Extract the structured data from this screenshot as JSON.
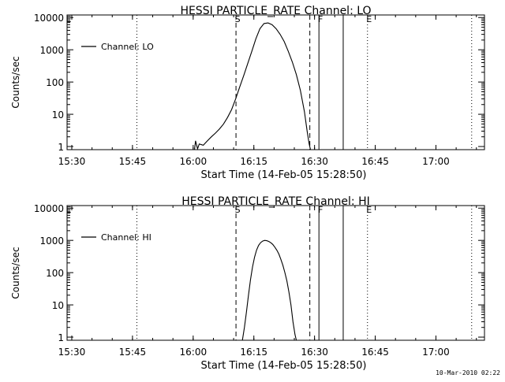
{
  "footer": {
    "timestamp": "10-Mar-2010 02:22"
  },
  "chart_data": [
    {
      "type": "line",
      "title": "HESSI PARTICLE_RATE Channel: LO",
      "xlabel": "Start Time (14-Feb-05 15:28:50)",
      "ylabel": "Counts/sec",
      "y_scale": "log",
      "ylim": [
        0.8,
        12000
      ],
      "xlim": [
        "15:28:50",
        "17:12:00"
      ],
      "x_ticks": [
        "15:30",
        "15:45",
        "16:00",
        "16:15",
        "16:30",
        "16:45",
        "17:00"
      ],
      "y_ticks": [
        "1",
        "10",
        "100",
        "1000",
        "10000"
      ],
      "legend": {
        "position": "top-left",
        "entries": [
          "Channel: LO"
        ]
      },
      "markers": [
        {
          "label": "E",
          "time": "15:28:50",
          "style": "dotted"
        },
        {
          "label": "",
          "time": "15:46:05",
          "style": "dotted"
        },
        {
          "label": "S",
          "time": "16:10:35",
          "style": "dashed"
        },
        {
          "label": "",
          "time": "16:28:50",
          "style": "dashed"
        },
        {
          "label": "F",
          "time": "16:31:05",
          "style": "solid"
        },
        {
          "label": "",
          "time": "16:37:05",
          "style": "solid"
        },
        {
          "label": "E",
          "time": "16:43:05",
          "style": "dotted"
        },
        {
          "label": "",
          "time": "17:08:50",
          "style": "dotted"
        }
      ],
      "series": [
        {
          "points": [
            [
              "16:00:20",
              0.8
            ],
            [
              "16:00:35",
              1.5
            ],
            [
              "16:01:05",
              0.85
            ],
            [
              "16:01:30",
              1.2
            ],
            [
              "16:02:30",
              1.1
            ],
            [
              "16:03:30",
              1.5
            ],
            [
              "16:04:30",
              2.0
            ],
            [
              "16:05:30",
              2.6
            ],
            [
              "16:06:30",
              3.5
            ],
            [
              "16:07:30",
              5.0
            ],
            [
              "16:08:30",
              8.0
            ],
            [
              "16:09:30",
              14
            ],
            [
              "16:10:30",
              30
            ],
            [
              "16:11:30",
              70
            ],
            [
              "16:12:30",
              160
            ],
            [
              "16:13:30",
              380
            ],
            [
              "16:14:30",
              900
            ],
            [
              "16:15:30",
              2200
            ],
            [
              "16:16:30",
              4500
            ],
            [
              "16:17:30",
              6500
            ],
            [
              "16:18:30",
              6800
            ],
            [
              "16:19:30",
              6000
            ],
            [
              "16:20:30",
              4500
            ],
            [
              "16:21:30",
              3000
            ],
            [
              "16:22:30",
              1800
            ],
            [
              "16:23:30",
              900
            ],
            [
              "16:24:30",
              420
            ],
            [
              "16:25:30",
              170
            ],
            [
              "16:26:30",
              55
            ],
            [
              "16:27:30",
              12
            ],
            [
              "16:28:10",
              3
            ],
            [
              "16:28:40",
              1.2
            ],
            [
              "16:29:00",
              0.8
            ]
          ]
        }
      ]
    },
    {
      "type": "line",
      "title": "HESSI PARTICLE_RATE Channel: HI",
      "xlabel": "Start Time (14-Feb-05 15:28:50)",
      "ylabel": "Counts/sec",
      "y_scale": "log",
      "ylim": [
        0.8,
        12000
      ],
      "xlim": [
        "15:28:50",
        "17:12:00"
      ],
      "x_ticks": [
        "15:30",
        "15:45",
        "16:00",
        "16:15",
        "16:30",
        "16:45",
        "17:00"
      ],
      "y_ticks": [
        "1",
        "10",
        "100",
        "1000",
        "10000"
      ],
      "legend": {
        "position": "top-left",
        "entries": [
          "Channel: HI"
        ]
      },
      "markers": [
        {
          "label": "E",
          "time": "15:28:50",
          "style": "dotted"
        },
        {
          "label": "",
          "time": "15:46:05",
          "style": "dotted"
        },
        {
          "label": "S",
          "time": "16:10:35",
          "style": "dashed"
        },
        {
          "label": "",
          "time": "16:28:50",
          "style": "dashed"
        },
        {
          "label": "F",
          "time": "16:31:05",
          "style": "solid"
        },
        {
          "label": "",
          "time": "16:37:05",
          "style": "solid"
        },
        {
          "label": "E",
          "time": "16:43:05",
          "style": "dotted"
        },
        {
          "label": "",
          "time": "17:08:50",
          "style": "dotted"
        }
      ],
      "series": [
        {
          "points": [
            [
              "16:12:10",
              0.8
            ],
            [
              "16:12:40",
              2
            ],
            [
              "16:13:10",
              6
            ],
            [
              "16:13:40",
              20
            ],
            [
              "16:14:10",
              60
            ],
            [
              "16:14:40",
              150
            ],
            [
              "16:15:10",
              300
            ],
            [
              "16:15:40",
              500
            ],
            [
              "16:16:10",
              700
            ],
            [
              "16:16:40",
              850
            ],
            [
              "16:17:10",
              950
            ],
            [
              "16:17:40",
              1000
            ],
            [
              "16:18:10",
              980
            ],
            [
              "16:18:40",
              930
            ],
            [
              "16:19:10",
              850
            ],
            [
              "16:19:40",
              750
            ],
            [
              "16:20:10",
              620
            ],
            [
              "16:20:40",
              500
            ],
            [
              "16:21:10",
              380
            ],
            [
              "16:21:40",
              260
            ],
            [
              "16:22:10",
              170
            ],
            [
              "16:22:40",
              100
            ],
            [
              "16:23:10",
              55
            ],
            [
              "16:23:40",
              25
            ],
            [
              "16:24:10",
              10
            ],
            [
              "16:24:40",
              3
            ],
            [
              "16:25:10",
              1.2
            ],
            [
              "16:25:30",
              0.8
            ]
          ]
        }
      ]
    }
  ]
}
